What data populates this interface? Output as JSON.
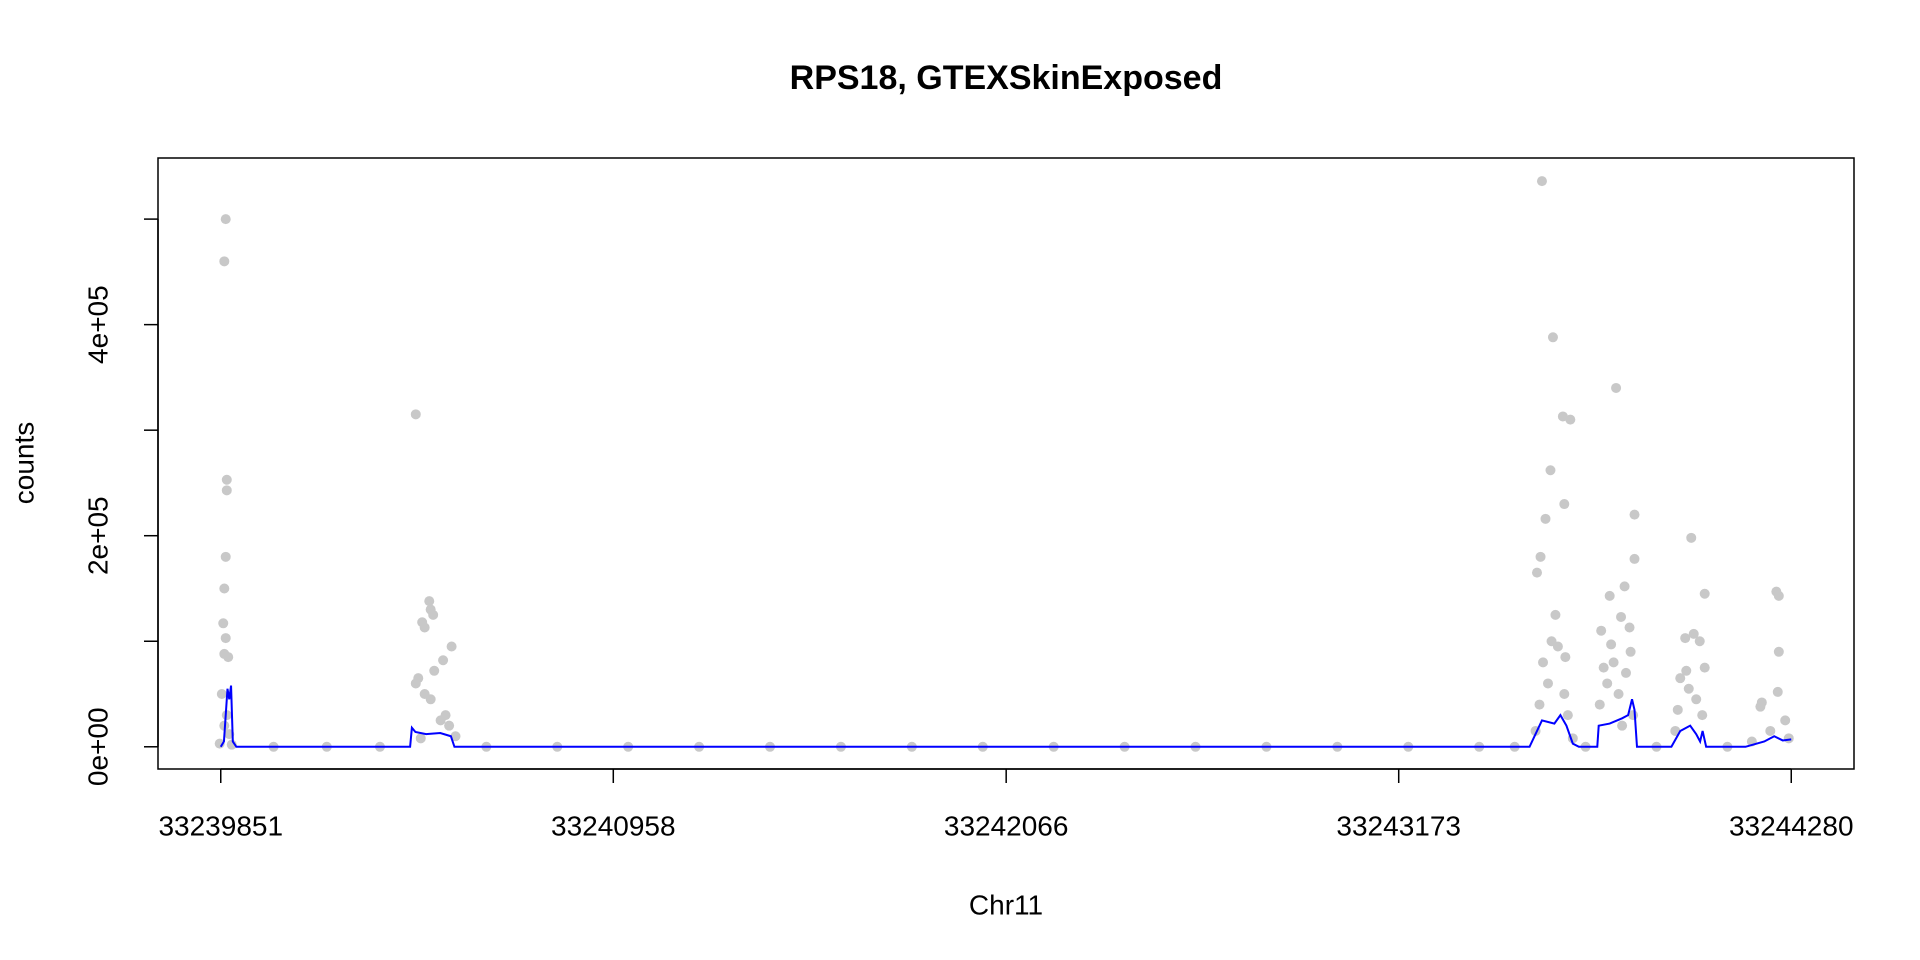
{
  "chart_data": {
    "type": "scatter",
    "title": "RPS18, GTEXSkinExposed",
    "x_label": "Chr11",
    "y_label": "counts",
    "xlim": [
      33239674,
      33244457
    ],
    "ylim": [
      -21053,
      557894
    ],
    "xticks": [
      33239851,
      33240958,
      33242066,
      33243173,
      33244280
    ],
    "yticks": [
      {
        "value": 0,
        "label": "0e+00"
      },
      {
        "value": 200000,
        "label": "2e+05"
      },
      {
        "value": 400000,
        "label": "4e+05"
      }
    ],
    "yminorticks": [
      100000,
      300000,
      500000
    ],
    "points": {
      "color": "#c8c8c8",
      "x": [
        33239865,
        33239861,
        33239868,
        33239868,
        33239865,
        33239861,
        33239858,
        33239865,
        33239861,
        33239872,
        33239854,
        33239868,
        33239861,
        33239875,
        33239848,
        33239882,
        33240401,
        33240439,
        33240443,
        33240450,
        33240419,
        33240426,
        33240502,
        33240478,
        33240453,
        33240408,
        33240401,
        33240426,
        33240443,
        33240485,
        33240471,
        33240495,
        33240513,
        33240415,
        33243577,
        33243608,
        33243636,
        33243657,
        33243601,
        33243640,
        33243587,
        33243573,
        33243563,
        33243615,
        33243604,
        33243622,
        33243643,
        33243580,
        33243594,
        33243640,
        33243570,
        33243650,
        33243559,
        33243664,
        33243786,
        33243838,
        33243838,
        33243810,
        33243768,
        33243800,
        33243824,
        33243744,
        33243772,
        33243827,
        33243779,
        33243751,
        33243814,
        33243761,
        33243793,
        33243740,
        33243834,
        33243803,
        33243998,
        33244036,
        33244005,
        33243981,
        33244022,
        33244036,
        33243984,
        33243967,
        33243991,
        33244012,
        33243960,
        33244029,
        33243953,
        33244238,
        33244245,
        33244245,
        33244242,
        33244197,
        33244193,
        33244263,
        33244221,
        33244273,
        33244169,
        33240000,
        33240150,
        33240300,
        33240600,
        33240800,
        33241000,
        33241200,
        33241400,
        33241600,
        33241800,
        33242000,
        33242200,
        33242400,
        33242600,
        33242800,
        33243000,
        33243200,
        33243400,
        33243500,
        33243700,
        33243900,
        33244100
      ],
      "y": [
        500000,
        460000,
        253000,
        243000,
        180000,
        150000,
        117000,
        103000,
        88000,
        85000,
        50000,
        30000,
        20000,
        12000,
        3000,
        2000,
        315000,
        138000,
        130000,
        125000,
        118000,
        113000,
        95000,
        82000,
        72000,
        65000,
        60000,
        50000,
        45000,
        30000,
        25000,
        20000,
        10000,
        8000,
        536000,
        388000,
        313000,
        310000,
        262000,
        230000,
        216000,
        180000,
        165000,
        125000,
        100000,
        95000,
        85000,
        80000,
        60000,
        50000,
        40000,
        30000,
        15000,
        8000,
        340000,
        220000,
        178000,
        152000,
        143000,
        123000,
        113000,
        110000,
        97000,
        90000,
        80000,
        75000,
        70000,
        60000,
        50000,
        40000,
        30000,
        20000,
        198000,
        145000,
        107000,
        103000,
        100000,
        75000,
        72000,
        65000,
        55000,
        45000,
        35000,
        30000,
        15000,
        147000,
        143000,
        90000,
        52000,
        42000,
        38000,
        25000,
        15000,
        8000,
        5000,
        0,
        0,
        0,
        0,
        0,
        0,
        0,
        0,
        0,
        0,
        0,
        0,
        0,
        0,
        0,
        0,
        0,
        0,
        0,
        0,
        0,
        0
      ]
    },
    "line": {
      "color": "#0000ff",
      "x": [
        33239851,
        33239860,
        33239870,
        33239875,
        33239880,
        33239885,
        33239895,
        33240385,
        33240390,
        33240400,
        33240430,
        33240470,
        33240500,
        33240510,
        33243542,
        33243577,
        33243612,
        33243629,
        33243646,
        33243664,
        33243681,
        33243733,
        33243737,
        33243768,
        33243803,
        33243820,
        33243831,
        33243838,
        33243845,
        33243942,
        33243967,
        33243995,
        33244012,
        33244023,
        33244030,
        33244040,
        33244151,
        33244204,
        33244232,
        33244256,
        33244280
      ],
      "y": [
        0,
        5000,
        55000,
        45000,
        58000,
        5000,
        0,
        0,
        18000,
        14000,
        12000,
        13000,
        10000,
        0,
        0,
        25000,
        22000,
        30000,
        20000,
        3000,
        0,
        0,
        20000,
        22000,
        27000,
        30000,
        45000,
        35000,
        0,
        0,
        15000,
        20000,
        12000,
        5000,
        15000,
        0,
        0,
        5000,
        10000,
        6000,
        7000
      ]
    }
  }
}
